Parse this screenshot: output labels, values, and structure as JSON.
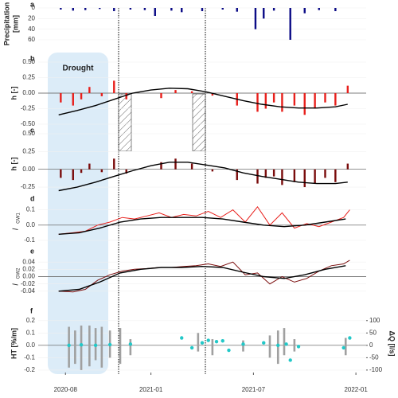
{
  "chart_data": [
    {
      "type": "combo",
      "panel": "a",
      "ylabel": "Precipitation",
      "ylabel2": "[mm]",
      "xlim": [
        2020.45,
        2022.05
      ],
      "ylim": [
        60,
        0
      ],
      "yticks": [
        0,
        20,
        40,
        60
      ],
      "series": [
        {
          "type": "bar",
          "color": "#0b0b86",
          "x": [
            2020.56,
            2020.62,
            2020.68,
            2020.75,
            2020.82,
            2020.9,
            2020.97,
            2021.02,
            2021.1,
            2021.15,
            2021.25,
            2021.35,
            2021.42,
            2021.51,
            2021.55,
            2021.6,
            2021.68,
            2021.75,
            2021.82,
            2021.9
          ],
          "values": [
            3,
            5,
            4,
            2,
            6,
            3,
            4,
            15,
            5,
            8,
            6,
            3,
            7,
            40,
            20,
            5,
            60,
            10,
            4,
            6
          ]
        }
      ]
    },
    {
      "type": "combo",
      "panel": "b",
      "ylabel": "h [-]",
      "annotation": "Drought",
      "xlim": [
        2020.45,
        2022.05
      ],
      "ylim": [
        -0.5,
        0.5
      ],
      "yticks": [
        {
          "value": -0.5,
          "label": "-0.50"
        },
        -0.25,
        {
          "value": 0,
          "label": "0.00"
        },
        0.25,
        {
          "value": 0.5,
          "label": "0.50"
        }
      ],
      "series": [
        {
          "type": "bar",
          "color": "#e8201c",
          "x": [
            2020.56,
            2020.62,
            2020.66,
            2020.7,
            2020.76,
            2020.82,
            2020.88,
            2021.05,
            2021.12,
            2021.2,
            2021.3,
            2021.42,
            2021.52,
            2021.56,
            2021.6,
            2021.64,
            2021.7,
            2021.75,
            2021.8,
            2021.85,
            2021.9,
            2021.96
          ],
          "values": [
            -0.15,
            -0.2,
            -0.1,
            0.1,
            -0.05,
            0.2,
            -0.1,
            -0.08,
            0.05,
            0.03,
            -0.04,
            -0.2,
            -0.3,
            -0.25,
            -0.15,
            -0.3,
            -0.2,
            -0.35,
            -0.25,
            -0.15,
            -0.2,
            0.12
          ]
        },
        {
          "type": "line",
          "color": "#000000",
          "x": [
            2020.55,
            2020.64,
            2020.73,
            2020.82,
            2020.91,
            2021.0,
            2021.09,
            2021.18,
            2021.27,
            2021.36,
            2021.45,
            2021.54,
            2021.63,
            2021.72,
            2021.81,
            2021.9,
            2021.96
          ],
          "values": [
            -0.35,
            -0.28,
            -0.2,
            -0.1,
            0.0,
            0.05,
            0.08,
            0.07,
            0.02,
            -0.05,
            -0.12,
            -0.18,
            -0.22,
            -0.24,
            -0.24,
            -0.22,
            -0.18
          ]
        }
      ]
    },
    {
      "type": "combo",
      "panel": "c",
      "ylabel": "h [-]",
      "xlim": [
        2020.45,
        2022.05
      ],
      "ylim": [
        -0.35,
        0.5
      ],
      "yticks": [
        -0.25,
        {
          "value": 0,
          "label": "0.00"
        },
        0.25,
        {
          "value": 0.5,
          "label": "0.50"
        }
      ],
      "series": [
        {
          "type": "bar",
          "color": "#7a0c0c",
          "x": [
            2020.56,
            2020.62,
            2020.66,
            2020.7,
            2020.76,
            2020.82,
            2020.88,
            2021.05,
            2021.12,
            2021.2,
            2021.3,
            2021.42,
            2021.52,
            2021.56,
            2021.6,
            2021.64,
            2021.7,
            2021.75,
            2021.8,
            2021.85,
            2021.9,
            2021.96
          ],
          "values": [
            -0.12,
            -0.15,
            -0.05,
            0.08,
            -0.04,
            0.15,
            -0.06,
            0.1,
            0.15,
            0.08,
            -0.03,
            -0.15,
            -0.2,
            -0.12,
            -0.1,
            -0.22,
            -0.18,
            -0.25,
            -0.2,
            -0.12,
            -0.18,
            0.08
          ]
        },
        {
          "type": "line",
          "color": "#000000",
          "x": [
            2020.55,
            2020.64,
            2020.73,
            2020.82,
            2020.91,
            2021.0,
            2021.09,
            2021.18,
            2021.27,
            2021.36,
            2021.45,
            2021.54,
            2021.63,
            2021.72,
            2021.81,
            2021.9,
            2021.96
          ],
          "values": [
            -0.3,
            -0.25,
            -0.18,
            -0.1,
            -0.02,
            0.05,
            0.1,
            0.1,
            0.06,
            0.02,
            -0.05,
            -0.1,
            -0.14,
            -0.18,
            -0.2,
            -0.2,
            -0.18
          ]
        }
      ]
    },
    {
      "type": "combo",
      "panel": "d",
      "ylabel": "I",
      "ylabel_sub": "GW1",
      "xlim": [
        2020.45,
        2022.05
      ],
      "ylim": [
        -0.1,
        0.15
      ],
      "yticks": [
        -0.1,
        {
          "value": 0,
          "label": "0.0"
        },
        0.1
      ],
      "series": [
        {
          "type": "line",
          "color": "#e8201c",
          "x": [
            2020.55,
            2020.62,
            2020.68,
            2020.74,
            2020.8,
            2020.86,
            2020.92,
            2020.98,
            2021.04,
            2021.1,
            2021.16,
            2021.22,
            2021.28,
            2021.34,
            2021.4,
            2021.46,
            2021.52,
            2021.58,
            2021.64,
            2021.7,
            2021.76,
            2021.82,
            2021.88,
            2021.94,
            2021.97
          ],
          "values": [
            -0.06,
            -0.05,
            -0.04,
            0.0,
            0.02,
            0.05,
            0.04,
            0.06,
            0.08,
            0.05,
            0.07,
            0.06,
            0.09,
            0.05,
            0.1,
            0.02,
            0.12,
            0.0,
            0.08,
            -0.02,
            0.01,
            -0.01,
            0.02,
            0.05,
            0.1
          ]
        },
        {
          "type": "line",
          "color": "#000000",
          "x": [
            2020.55,
            2020.65,
            2020.75,
            2020.85,
            2020.95,
            2021.05,
            2021.15,
            2021.25,
            2021.35,
            2021.45,
            2021.55,
            2021.65,
            2021.75,
            2021.85,
            2021.95
          ],
          "values": [
            -0.06,
            -0.05,
            -0.02,
            0.02,
            0.04,
            0.05,
            0.05,
            0.05,
            0.04,
            0.02,
            0.0,
            -0.01,
            0.0,
            0.02,
            0.04
          ]
        }
      ]
    },
    {
      "type": "combo",
      "panel": "e",
      "ylabel": "I",
      "ylabel_sub": "GW2",
      "xlim": [
        2020.45,
        2022.05
      ],
      "ylim": [
        -0.06,
        0.06
      ],
      "yticks": [
        -0.04,
        -0.02,
        {
          "value": 0,
          "label": "0.00"
        },
        0.02,
        0.04
      ],
      "series": [
        {
          "type": "line",
          "color": "#7a0c0c",
          "x": [
            2020.55,
            2020.62,
            2020.68,
            2020.74,
            2020.8,
            2020.86,
            2020.92,
            2020.98,
            2021.04,
            2021.1,
            2021.16,
            2021.22,
            2021.28,
            2021.34,
            2021.4,
            2021.46,
            2021.52,
            2021.58,
            2021.64,
            2021.7,
            2021.76,
            2021.82,
            2021.88,
            2021.94,
            2021.97
          ],
          "values": [
            -0.04,
            -0.042,
            -0.035,
            -0.01,
            0.005,
            0.015,
            0.02,
            0.022,
            0.025,
            0.025,
            0.028,
            0.03,
            0.035,
            0.028,
            0.04,
            0.005,
            0.01,
            -0.02,
            0.0,
            -0.015,
            -0.005,
            0.015,
            0.03,
            0.035,
            0.045
          ]
        },
        {
          "type": "line",
          "color": "#000000",
          "x": [
            2020.55,
            2020.65,
            2020.75,
            2020.85,
            2020.95,
            2021.05,
            2021.15,
            2021.25,
            2021.35,
            2021.45,
            2021.55,
            2021.65,
            2021.75,
            2021.85,
            2021.95
          ],
          "values": [
            -0.04,
            -0.035,
            -0.015,
            0.01,
            0.02,
            0.025,
            0.025,
            0.028,
            0.025,
            0.012,
            0.0,
            -0.005,
            0.005,
            0.02,
            0.03
          ]
        }
      ]
    },
    {
      "type": "combo",
      "panel": "f",
      "ylabel": "HT [%/m]",
      "y2label": "ΔQ [l/s]",
      "xlim": [
        2020.45,
        2022.05
      ],
      "ylim": [
        -0.22,
        0.25
      ],
      "yticks": [
        -0.2,
        -0.1,
        {
          "value": 0,
          "label": "0.0"
        },
        0.1,
        0.2
      ],
      "y2lim": [
        -110,
        125
      ],
      "y2ticks": [
        -100,
        -50,
        0,
        50,
        100
      ],
      "xticks": [
        {
          "value": 2020.583,
          "label": "2020-08"
        },
        {
          "value": 2021.0,
          "label": "2021-01"
        },
        {
          "value": 2021.5,
          "label": "2021-07"
        },
        {
          "value": 2022.0,
          "label": "2022-01"
        }
      ],
      "series": [
        {
          "type": "range",
          "color": "#a0a0a0",
          "x": [
            2020.6,
            2020.63,
            2020.66,
            2020.7,
            2020.73,
            2020.76,
            2020.8,
            2020.85,
            2020.9,
            2021.23,
            2021.3,
            2021.45,
            2021.58,
            2021.62,
            2021.65,
            2021.7,
            2021.95
          ],
          "values": [
            [
              -0.18,
              0.15
            ],
            [
              -0.15,
              0.12
            ],
            [
              -0.2,
              0.16
            ],
            [
              -0.17,
              0.16
            ],
            [
              -0.12,
              0.14
            ],
            [
              -0.18,
              0.15
            ],
            [
              -0.1,
              0.12
            ],
            [
              -0.15,
              0.14
            ],
            [
              -0.08,
              0.05
            ],
            [
              -0.05,
              0.1
            ],
            [
              -0.08,
              0.05
            ],
            [
              -0.05,
              0.04
            ],
            [
              -0.1,
              0.08
            ],
            [
              -0.15,
              0.12
            ],
            [
              -0.08,
              0.14
            ],
            [
              -0.05,
              0.05
            ],
            [
              -0.08,
              0.06
            ]
          ]
        },
        {
          "type": "scatter",
          "axis": "y2",
          "color": "#22c8c8",
          "x": [
            2020.6,
            2020.66,
            2020.73,
            2020.8,
            2020.9,
            2021.15,
            2021.2,
            2021.25,
            2021.28,
            2021.32,
            2021.35,
            2021.38,
            2021.45,
            2021.55,
            2021.62,
            2021.66,
            2021.68,
            2021.72,
            2021.94,
            2021.97
          ],
          "values": [
            0,
            2,
            0,
            3,
            5,
            30,
            -10,
            10,
            20,
            15,
            18,
            -20,
            5,
            10,
            0,
            5,
            -60,
            -5,
            -10,
            30
          ]
        }
      ]
    }
  ]
}
